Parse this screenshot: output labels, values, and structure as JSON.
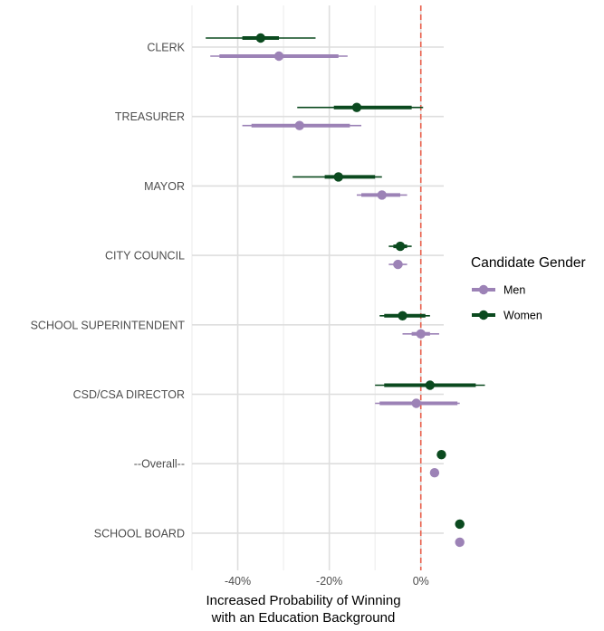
{
  "chart_data": {
    "type": "scatter",
    "subtype": "coefficient-plot",
    "orientation": "horizontal",
    "title": "",
    "xlabel_lines": [
      "Increased Probability of Winning",
      "with an Education Background"
    ],
    "ylabel": "",
    "x_tick_labels": [
      "-40%",
      "-20%",
      "0%"
    ],
    "x_ticks": [
      -40,
      -20,
      0
    ],
    "xlim": [
      -50,
      5
    ],
    "reference_line": {
      "x": 0,
      "color": "#e8604c",
      "style": "dashed"
    },
    "grid": true,
    "categories": [
      "CLERK",
      "TREASURER",
      "MAYOR",
      "CITY COUNCIL",
      "SCHOOL SUPERINTENDENT",
      "CSD/CSA DIRECTOR",
      "--Overall--",
      "SCHOOL BOARD"
    ],
    "legend": {
      "title": "Candidate Gender",
      "placement": "right"
    },
    "series": [
      {
        "name": "Women",
        "color": "#0b4a1f",
        "estimates": [
          -35.0,
          -14.0,
          -18.0,
          -4.5,
          -4.0,
          2.0,
          4.5,
          8.5
        ],
        "ci_inner": [
          [
            -39.0,
            -31.0
          ],
          [
            -19.0,
            -2.0
          ],
          [
            -21.0,
            -10.0
          ],
          [
            -6.0,
            -3.0
          ],
          [
            -8.0,
            1.0
          ],
          [
            -8.0,
            12.0
          ],
          [
            4.5,
            4.5
          ],
          [
            8.0,
            9.0
          ]
        ],
        "ci_outer": [
          [
            -47.0,
            -23.0
          ],
          [
            -27.0,
            0.5
          ],
          [
            -28.0,
            -8.5
          ],
          [
            -7.0,
            -2.0
          ],
          [
            -9.0,
            2.0
          ],
          [
            -10.0,
            14.0
          ],
          [
            4.5,
            4.5
          ],
          [
            7.5,
            9.5
          ]
        ]
      },
      {
        "name": "Men",
        "color": "#9c82b6",
        "estimates": [
          -31.0,
          -26.5,
          -8.5,
          -5.0,
          0.0,
          -1.0,
          3.0,
          8.5
        ],
        "ci_inner": [
          [
            -44.0,
            -18.0
          ],
          [
            -37.0,
            -15.5
          ],
          [
            -13.0,
            -4.5
          ],
          [
            -6.0,
            -4.0
          ],
          [
            -2.0,
            2.0
          ],
          [
            -9.0,
            8.0
          ],
          [
            3.0,
            3.0
          ],
          [
            8.5,
            8.5
          ]
        ],
        "ci_outer": [
          [
            -46.0,
            -16.0
          ],
          [
            -39.0,
            -13.0
          ],
          [
            -14.0,
            -3.0
          ],
          [
            -7.0,
            -3.0
          ],
          [
            -4.0,
            4.0
          ],
          [
            -10.0,
            8.5
          ],
          [
            3.0,
            3.0
          ],
          [
            8.5,
            8.5
          ]
        ]
      }
    ]
  }
}
